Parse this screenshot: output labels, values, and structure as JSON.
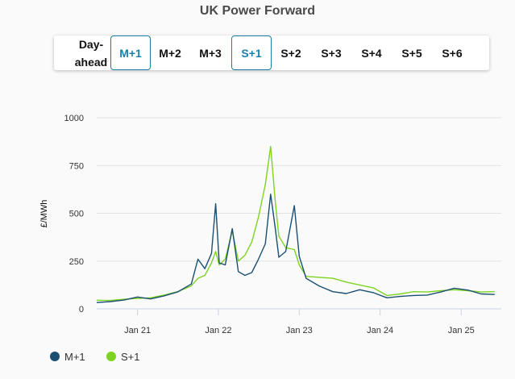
{
  "title": "UK Power Forward",
  "tabs": [
    {
      "label": "Day-ahead",
      "active": false
    },
    {
      "label": "M+1",
      "active": true
    },
    {
      "label": "M+2",
      "active": false
    },
    {
      "label": "M+3",
      "active": false
    },
    {
      "label": "S+1",
      "active": true
    },
    {
      "label": "S+2",
      "active": false
    },
    {
      "label": "S+3",
      "active": false
    },
    {
      "label": "S+4",
      "active": false
    },
    {
      "label": "S+5",
      "active": false
    },
    {
      "label": "S+6",
      "active": false
    }
  ],
  "chart_data": {
    "type": "line",
    "title": "UK Power Forward",
    "ylabel": "£/MWh",
    "xlabel": "",
    "ylim": [
      0,
      1000
    ],
    "yticks": [
      0,
      250,
      500,
      750,
      1000
    ],
    "xlim": [
      "2020-07-01",
      "2025-07-01"
    ],
    "xticks": [
      "Jan 21",
      "Jan 22",
      "Jan 23",
      "Jan 24",
      "Jan 25"
    ],
    "grid": true,
    "legend": "bottom-left",
    "series": [
      {
        "name": "M+1",
        "color": "#1b4f72",
        "points": [
          [
            "2020-07-01",
            33
          ],
          [
            "2020-09-01",
            38
          ],
          [
            "2020-11-01",
            46
          ],
          [
            "2021-01-01",
            62
          ],
          [
            "2021-03-01",
            52
          ],
          [
            "2021-05-01",
            68
          ],
          [
            "2021-07-01",
            88
          ],
          [
            "2021-09-01",
            130
          ],
          [
            "2021-10-01",
            260
          ],
          [
            "2021-11-01",
            210
          ],
          [
            "2021-12-01",
            290
          ],
          [
            "2021-12-20",
            550
          ],
          [
            "2022-01-05",
            240
          ],
          [
            "2022-02-01",
            230
          ],
          [
            "2022-03-05",
            420
          ],
          [
            "2022-04-01",
            195
          ],
          [
            "2022-05-01",
            175
          ],
          [
            "2022-06-01",
            190
          ],
          [
            "2022-07-01",
            260
          ],
          [
            "2022-08-01",
            340
          ],
          [
            "2022-08-25",
            600
          ],
          [
            "2022-09-15",
            420
          ],
          [
            "2022-10-01",
            270
          ],
          [
            "2022-11-01",
            300
          ],
          [
            "2022-12-10",
            540
          ],
          [
            "2023-01-01",
            275
          ],
          [
            "2023-02-01",
            160
          ],
          [
            "2023-04-01",
            120
          ],
          [
            "2023-06-01",
            90
          ],
          [
            "2023-08-01",
            80
          ],
          [
            "2023-10-01",
            100
          ],
          [
            "2023-12-01",
            85
          ],
          [
            "2024-02-01",
            58
          ],
          [
            "2024-04-01",
            65
          ],
          [
            "2024-06-01",
            70
          ],
          [
            "2024-08-01",
            72
          ],
          [
            "2024-10-01",
            88
          ],
          [
            "2024-12-01",
            108
          ],
          [
            "2025-02-01",
            98
          ],
          [
            "2025-04-01",
            78
          ],
          [
            "2025-06-01",
            75
          ]
        ]
      },
      {
        "name": "S+1",
        "color": "#7ed321",
        "points": [
          [
            "2020-07-01",
            45
          ],
          [
            "2020-09-01",
            44
          ],
          [
            "2020-11-01",
            50
          ],
          [
            "2021-01-01",
            55
          ],
          [
            "2021-03-01",
            58
          ],
          [
            "2021-05-01",
            72
          ],
          [
            "2021-07-01",
            90
          ],
          [
            "2021-09-01",
            120
          ],
          [
            "2021-10-01",
            160
          ],
          [
            "2021-11-01",
            175
          ],
          [
            "2021-12-01",
            240
          ],
          [
            "2021-12-20",
            300
          ],
          [
            "2022-01-05",
            230
          ],
          [
            "2022-02-01",
            260
          ],
          [
            "2022-03-05",
            410
          ],
          [
            "2022-04-01",
            250
          ],
          [
            "2022-05-01",
            280
          ],
          [
            "2022-06-01",
            350
          ],
          [
            "2022-07-01",
            480
          ],
          [
            "2022-08-01",
            650
          ],
          [
            "2022-08-25",
            850
          ],
          [
            "2022-09-15",
            560
          ],
          [
            "2022-10-01",
            380
          ],
          [
            "2022-11-01",
            320
          ],
          [
            "2022-12-10",
            310
          ],
          [
            "2023-01-01",
            230
          ],
          [
            "2023-02-01",
            170
          ],
          [
            "2023-04-01",
            165
          ],
          [
            "2023-06-01",
            160
          ],
          [
            "2023-08-01",
            140
          ],
          [
            "2023-10-01",
            125
          ],
          [
            "2023-12-01",
            110
          ],
          [
            "2024-02-01",
            70
          ],
          [
            "2024-04-01",
            78
          ],
          [
            "2024-06-01",
            90
          ],
          [
            "2024-08-01",
            88
          ],
          [
            "2024-10-01",
            95
          ],
          [
            "2024-12-01",
            100
          ],
          [
            "2025-02-01",
            95
          ],
          [
            "2025-04-01",
            88
          ],
          [
            "2025-06-01",
            90
          ]
        ]
      }
    ]
  }
}
